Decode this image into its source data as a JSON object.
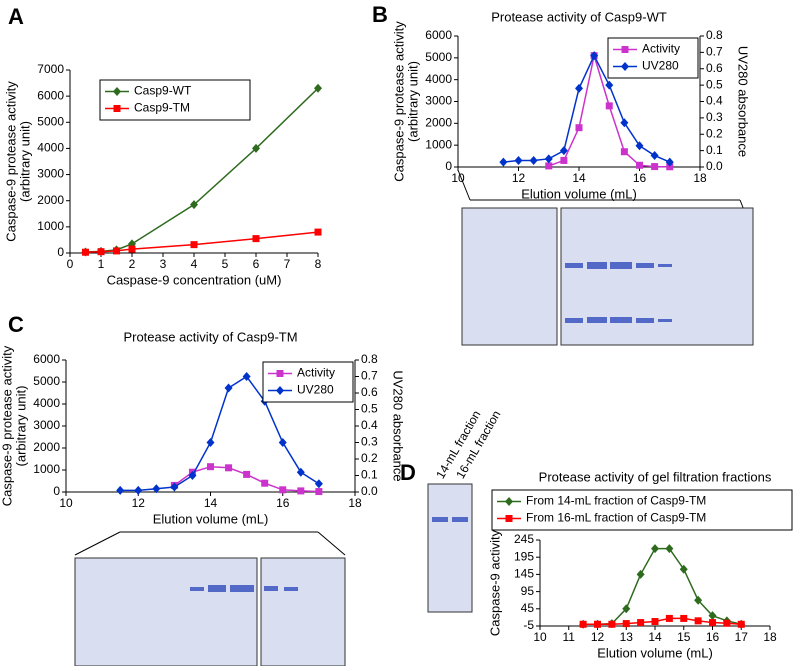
{
  "chart_data": [
    {
      "type": "line",
      "panel": "A",
      "x": [
        0.5,
        1,
        1.5,
        2,
        4,
        6,
        8
      ],
      "series": [
        {
          "name": "Casp9-WT",
          "color": "#2e6b1e",
          "marker": "diamond",
          "values": [
            40,
            60,
            120,
            350,
            1850,
            4000,
            6300
          ]
        },
        {
          "name": "Casp9-TM",
          "color": "#ff0000",
          "marker": "square",
          "values": [
            30,
            50,
            80,
            150,
            320,
            550,
            800
          ]
        }
      ],
      "xlim": [
        0,
        8
      ],
      "xticks": [
        0,
        1,
        2,
        3,
        4,
        5,
        6,
        7,
        8
      ],
      "ylim": [
        0,
        7000
      ],
      "yticks": [
        0,
        1000,
        2000,
        3000,
        4000,
        5000,
        6000,
        7000
      ],
      "xlabel": "Caspase-9 concentration (uM)",
      "ylabel": [
        "Caspase-9 protease activity",
        "(arbitrary unit)"
      ],
      "legend": "upper left"
    },
    {
      "type": "line",
      "panel": "B",
      "title": "Protease activity of Casp9-WT",
      "x": [
        11.5,
        12,
        12.5,
        13,
        13.5,
        14,
        14.5,
        15,
        15.5,
        16,
        16.5,
        17
      ],
      "series": [
        {
          "name": "Activity",
          "color": "#cc33cc",
          "marker": "square",
          "values": [
            null,
            null,
            null,
            50,
            300,
            1800,
            5100,
            2800,
            700,
            80,
            20,
            10
          ]
        },
        {
          "name": "UV280",
          "color": "#0033cc",
          "marker": "diamond",
          "axis": "y2",
          "values": [
            0.03,
            0.04,
            0.04,
            0.05,
            0.1,
            0.48,
            0.68,
            0.5,
            0.27,
            0.13,
            0.07,
            0.03
          ]
        }
      ],
      "xlim": [
        10,
        18
      ],
      "xticks": [
        10,
        12,
        14,
        16,
        18
      ],
      "ylim": [
        0,
        6000
      ],
      "yticks": [
        0,
        1000,
        2000,
        3000,
        4000,
        5000,
        6000
      ],
      "y2lim": [
        0,
        0.8
      ],
      "y2ticks": [
        {
          "value": 0,
          "label": "0.0"
        },
        0.1,
        0.2,
        0.3,
        0.4,
        0.5,
        0.6,
        0.7,
        0.8
      ],
      "xlabel": "Elution volume (mL)",
      "ylabel": [
        "Caspase-9 protease activity",
        "(arbitrary unit)"
      ],
      "y2label": "UV280 absorbance",
      "legend": "upper right"
    },
    {
      "type": "line",
      "panel": "C",
      "title": "Protease activity of Casp9-TM",
      "x": [
        11.5,
        12,
        12.5,
        13,
        13.5,
        14,
        14.5,
        15,
        15.5,
        16,
        16.5,
        17
      ],
      "series": [
        {
          "name": "Activity",
          "color": "#cc33cc",
          "marker": "square",
          "values": [
            null,
            null,
            null,
            300,
            900,
            1150,
            1100,
            800,
            400,
            100,
            50,
            20
          ]
        },
        {
          "name": "UV280",
          "color": "#0033cc",
          "marker": "diamond",
          "axis": "y2",
          "values": [
            0.01,
            0.01,
            0.02,
            0.03,
            0.1,
            0.3,
            0.63,
            0.7,
            0.55,
            0.3,
            0.12,
            0.05
          ]
        }
      ],
      "xlim": [
        10,
        18
      ],
      "xticks": [
        10,
        12,
        14,
        16,
        18
      ],
      "ylim": [
        0,
        6000
      ],
      "yticks": [
        0,
        1000,
        2000,
        3000,
        4000,
        5000,
        6000
      ],
      "y2lim": [
        0,
        0.8
      ],
      "y2ticks": [
        {
          "value": 0,
          "label": "0.0"
        },
        0.1,
        0.2,
        0.3,
        0.4,
        0.5,
        0.6,
        0.7,
        0.8
      ],
      "xlabel": "Elution volume (mL)",
      "ylabel": [
        "Caspase-9 protease activity",
        "(arbitrary unit)"
      ],
      "y2label": "UV280 absorbance",
      "legend": "upper right"
    },
    {
      "type": "line",
      "panel": "D",
      "title": "Protease activity of gel filtration fractions",
      "gel_lane_labels": [
        "14-mL fraction",
        "16-mL fraction"
      ],
      "x": [
        11.5,
        12,
        12.5,
        13,
        13.5,
        14,
        14.5,
        15,
        15.5,
        16,
        16.5,
        17
      ],
      "series": [
        {
          "name": "From 14-mL fraction of Casp9-TM",
          "color": "#2e6b1e",
          "marker": "diamond",
          "values": [
            0,
            0,
            2,
            45,
            145,
            220,
            220,
            160,
            70,
            25,
            10,
            0
          ]
        },
        {
          "name": "From 16-mL fraction of Casp9-TM",
          "color": "#ff0000",
          "marker": "square",
          "values": [
            0,
            0,
            0,
            2,
            5,
            8,
            17,
            17,
            10,
            5,
            3,
            0
          ]
        }
      ],
      "xlim": [
        10,
        18
      ],
      "xticks": [
        10,
        11,
        12,
        13,
        14,
        15,
        16,
        17,
        18
      ],
      "ylim": [
        -5,
        245
      ],
      "yticks": [
        -5,
        45,
        95,
        145,
        195,
        245
      ],
      "xlabel": "Elution volume (mL)",
      "ylabel": [
        "Caspase-9 activity"
      ],
      "legend": "above"
    }
  ]
}
